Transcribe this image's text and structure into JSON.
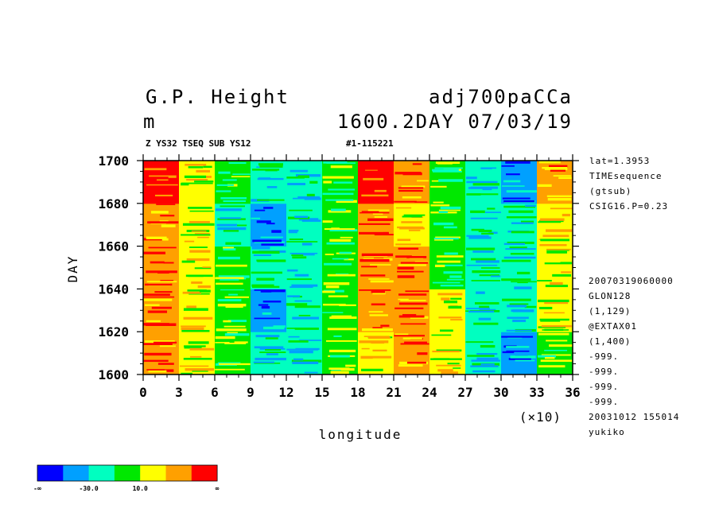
{
  "header": {
    "title_left": "G.P. Height",
    "title_right": "adj700paCCa",
    "unit": "m",
    "time_label": "1600.2DAY 07/03/19",
    "sub_left": "Z YS32 TSEQ SUB YS12",
    "sub_right": "#1-115221"
  },
  "side_top": [
    "lat=1.3953",
    "TIMEsequence",
    "(gtsub)",
    "CSIG16.P=0.23"
  ],
  "side_bottom": [
    "20070319060000",
    "GLON128",
    "(1,129)",
    "@EXTAX01",
    "(1,400)",
    "-999.",
    "-999.",
    "-999.",
    "-999.",
    "20031012 155014",
    "yukiko"
  ],
  "chart_data": {
    "type": "heatmap",
    "title": "G.P. Height",
    "xlabel": "longitude",
    "ylabel": "DAY",
    "x_multiplier": "(×10)",
    "xlim": [
      0,
      36
    ],
    "ylim": [
      1600,
      1700
    ],
    "xticks": [
      "0",
      "3",
      "6",
      "9",
      "12",
      "15",
      "18",
      "21",
      "24",
      "27",
      "30",
      "33",
      "36"
    ],
    "yticks": [
      "1600",
      "1620",
      "1640",
      "1660",
      "1680",
      "1700"
    ],
    "colorbar": {
      "colors": [
        "#0000ff",
        "#00a0ff",
        "#00ffc0",
        "#00e800",
        "#ffff00",
        "#ffa000",
        "#ff0000"
      ],
      "labels": [
        "-∞",
        "-30.0",
        "10.0",
        "∞"
      ]
    },
    "x_bins": [
      0,
      3,
      6,
      9,
      12,
      15,
      18,
      21,
      24,
      27,
      30,
      33,
      36
    ],
    "y_bins": [
      1600,
      1620,
      1640,
      1660,
      1680,
      1700
    ],
    "levels": [
      [
        5,
        4,
        3,
        2,
        2,
        3,
        4,
        5,
        4,
        2,
        1,
        3
      ],
      [
        5,
        4,
        3,
        1,
        2,
        3,
        5,
        5,
        4,
        2,
        2,
        4
      ],
      [
        5,
        4,
        3,
        2,
        2,
        3,
        5,
        5,
        3,
        2,
        2,
        4
      ],
      [
        5,
        4,
        2,
        1,
        2,
        3,
        5,
        4,
        3,
        2,
        2,
        4
      ],
      [
        6,
        4,
        3,
        2,
        2,
        3,
        6,
        5,
        3,
        2,
        1,
        5
      ]
    ]
  }
}
